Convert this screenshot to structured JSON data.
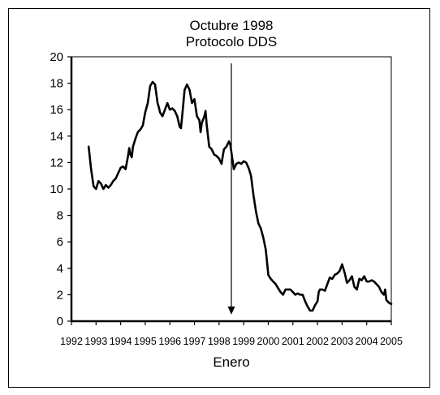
{
  "chart_data": {
    "type": "line",
    "title": "Octubre 1998",
    "subtitle": "Protocolo DDS",
    "xlabel": "Enero",
    "ylabel": "",
    "xlim": [
      1992,
      2005
    ],
    "ylim": [
      0,
      20
    ],
    "x_ticks": [
      "1992",
      "1993",
      "1994",
      "1995",
      "1996",
      "1997",
      "1998",
      "1999",
      "2000",
      "2001",
      "2002",
      "2003",
      "2004",
      "2005"
    ],
    "y_ticks": [
      "0",
      "2",
      "4",
      "6",
      "8",
      "10",
      "12",
      "14",
      "16",
      "18",
      "20"
    ],
    "grid": false,
    "annotation": {
      "type": "arrow",
      "x": 1998.5,
      "from_y": 19.5,
      "to_y": 0.5
    },
    "series": [
      {
        "values": [
          [
            1992.7,
            13.2
          ],
          [
            1992.8,
            11.5
          ],
          [
            1992.9,
            10.2
          ],
          [
            1993.0,
            10.0
          ],
          [
            1993.1,
            10.6
          ],
          [
            1993.2,
            10.4
          ],
          [
            1993.3,
            10.0
          ],
          [
            1993.4,
            10.3
          ],
          [
            1993.5,
            10.1
          ],
          [
            1993.6,
            10.3
          ],
          [
            1993.7,
            10.6
          ],
          [
            1993.8,
            10.8
          ],
          [
            1993.9,
            11.2
          ],
          [
            1994.0,
            11.6
          ],
          [
            1994.1,
            11.7
          ],
          [
            1994.2,
            11.5
          ],
          [
            1994.3,
            12.5
          ],
          [
            1994.35,
            13.1
          ],
          [
            1994.4,
            12.6
          ],
          [
            1994.45,
            12.4
          ],
          [
            1994.5,
            13.2
          ],
          [
            1994.6,
            13.8
          ],
          [
            1994.7,
            14.3
          ],
          [
            1994.8,
            14.5
          ],
          [
            1994.9,
            14.8
          ],
          [
            1995.0,
            15.8
          ],
          [
            1995.1,
            16.5
          ],
          [
            1995.2,
            17.8
          ],
          [
            1995.3,
            18.1
          ],
          [
            1995.4,
            17.9
          ],
          [
            1995.5,
            16.5
          ],
          [
            1995.55,
            16.2
          ],
          [
            1995.6,
            15.8
          ],
          [
            1995.7,
            15.5
          ],
          [
            1995.8,
            16.0
          ],
          [
            1995.9,
            16.5
          ],
          [
            1996.0,
            16.0
          ],
          [
            1996.1,
            16.1
          ],
          [
            1996.2,
            15.9
          ],
          [
            1996.3,
            15.5
          ],
          [
            1996.4,
            14.7
          ],
          [
            1996.45,
            14.6
          ],
          [
            1996.5,
            15.5
          ],
          [
            1996.6,
            17.5
          ],
          [
            1996.7,
            17.9
          ],
          [
            1996.8,
            17.5
          ],
          [
            1996.9,
            16.5
          ],
          [
            1997.0,
            16.8
          ],
          [
            1997.1,
            15.5
          ],
          [
            1997.2,
            15.2
          ],
          [
            1997.25,
            14.3
          ],
          [
            1997.3,
            15.0
          ],
          [
            1997.4,
            15.5
          ],
          [
            1997.45,
            15.9
          ],
          [
            1997.5,
            14.8
          ],
          [
            1997.6,
            13.2
          ],
          [
            1997.7,
            13.0
          ],
          [
            1997.8,
            12.6
          ],
          [
            1997.9,
            12.5
          ],
          [
            1998.0,
            12.3
          ],
          [
            1998.1,
            11.9
          ],
          [
            1998.15,
            12.5
          ],
          [
            1998.2,
            13.0
          ],
          [
            1998.3,
            13.2
          ],
          [
            1998.4,
            13.6
          ],
          [
            1998.45,
            13.4
          ],
          [
            1998.5,
            12.8
          ],
          [
            1998.6,
            11.5
          ],
          [
            1998.7,
            11.9
          ],
          [
            1998.8,
            12.0
          ],
          [
            1998.9,
            11.9
          ],
          [
            1999.0,
            12.1
          ],
          [
            1999.1,
            12.0
          ],
          [
            1999.2,
            11.6
          ],
          [
            1999.3,
            11.0
          ],
          [
            1999.4,
            9.5
          ],
          [
            1999.5,
            8.3
          ],
          [
            1999.6,
            7.4
          ],
          [
            1999.7,
            7.0
          ],
          [
            1999.8,
            6.3
          ],
          [
            1999.9,
            5.4
          ],
          [
            1999.95,
            4.5
          ],
          [
            2000.0,
            3.5
          ],
          [
            2000.1,
            3.2
          ],
          [
            2000.2,
            3.0
          ],
          [
            2000.3,
            2.8
          ],
          [
            2000.4,
            2.5
          ],
          [
            2000.5,
            2.2
          ],
          [
            2000.6,
            2.0
          ],
          [
            2000.7,
            2.4
          ],
          [
            2000.8,
            2.4
          ],
          [
            2000.9,
            2.4
          ],
          [
            2001.0,
            2.2
          ],
          [
            2001.1,
            2.0
          ],
          [
            2001.2,
            2.1
          ],
          [
            2001.3,
            2.0
          ],
          [
            2001.4,
            2.0
          ],
          [
            2001.5,
            1.5
          ],
          [
            2001.6,
            1.1
          ],
          [
            2001.7,
            0.8
          ],
          [
            2001.8,
            0.8
          ],
          [
            2001.9,
            1.2
          ],
          [
            2002.0,
            1.5
          ],
          [
            2002.05,
            2.2
          ],
          [
            2002.1,
            2.4
          ],
          [
            2002.2,
            2.4
          ],
          [
            2002.3,
            2.3
          ],
          [
            2002.4,
            2.8
          ],
          [
            2002.5,
            3.3
          ],
          [
            2002.6,
            3.2
          ],
          [
            2002.7,
            3.5
          ],
          [
            2002.8,
            3.6
          ],
          [
            2002.9,
            3.8
          ],
          [
            2003.0,
            4.3
          ],
          [
            2003.1,
            3.7
          ],
          [
            2003.2,
            2.9
          ],
          [
            2003.3,
            3.1
          ],
          [
            2003.4,
            3.4
          ],
          [
            2003.5,
            2.6
          ],
          [
            2003.6,
            2.4
          ],
          [
            2003.7,
            3.2
          ],
          [
            2003.8,
            3.1
          ],
          [
            2003.9,
            3.4
          ],
          [
            2004.0,
            3.0
          ],
          [
            2004.1,
            3.0
          ],
          [
            2004.2,
            3.1
          ],
          [
            2004.3,
            3.0
          ],
          [
            2004.4,
            2.8
          ],
          [
            2004.5,
            2.6
          ],
          [
            2004.6,
            2.2
          ],
          [
            2004.7,
            2.0
          ],
          [
            2004.75,
            2.4
          ],
          [
            2004.8,
            1.6
          ],
          [
            2004.9,
            1.4
          ],
          [
            2005.0,
            1.3
          ]
        ]
      }
    ]
  }
}
